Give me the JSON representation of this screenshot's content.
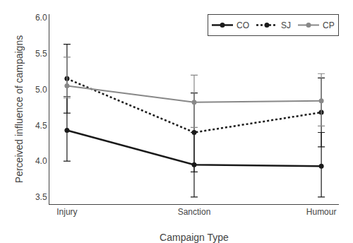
{
  "chart_data": {
    "type": "line",
    "categories": [
      "Injury",
      "Sanction",
      "Humour"
    ],
    "series": [
      {
        "name": "CO",
        "color": "#1a1a1a",
        "line_style": "solid",
        "values": [
          4.43,
          3.95,
          3.93
        ],
        "error_minus": [
          0.43,
          0.45,
          0.43
        ],
        "error_plus": [
          0.47,
          0.45,
          0.47
        ]
      },
      {
        "name": "SJ",
        "color": "#1a1a1a",
        "line_style": "dotted",
        "values": [
          5.15,
          4.4,
          4.68
        ],
        "error_minus": [
          0.48,
          0.55,
          0.48
        ],
        "error_plus": [
          0.48,
          0.55,
          0.48
        ]
      },
      {
        "name": "CP",
        "color": "#888888",
        "line_style": "solid",
        "values": [
          5.05,
          4.82,
          4.84
        ],
        "error_minus": [
          0.17,
          0.35,
          0.35
        ],
        "error_plus": [
          0.4,
          0.38,
          0.38
        ]
      }
    ],
    "marker": "circle",
    "xlabel": "Campaign Type",
    "ylabel": "Perceived influence of campaigns",
    "ylim": [
      3.4,
      6.05
    ],
    "yticks": [
      3.5,
      {
        "value": 4.0,
        "label": "4.0"
      },
      4.5,
      {
        "value": 5.0,
        "label": "5.0"
      },
      5.5,
      {
        "value": 6.0,
        "label": "6.0"
      }
    ],
    "grid": false,
    "legend": "upper right"
  }
}
